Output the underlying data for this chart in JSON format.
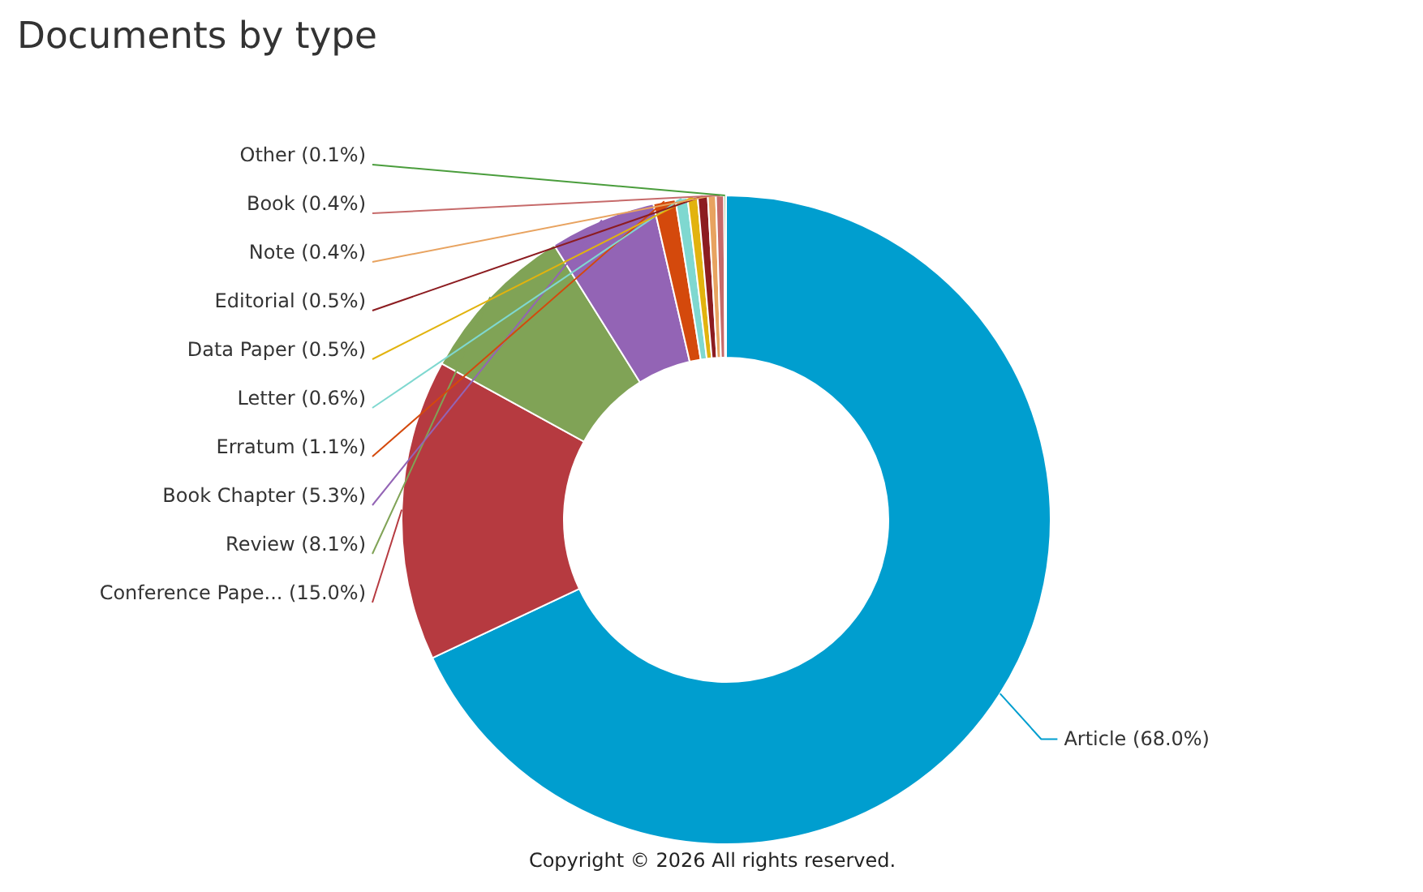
{
  "chart_data": {
    "type": "donut",
    "title": "Documents by type",
    "categories": [
      "Article",
      "Conference Pape...",
      "Review",
      "Book Chapter",
      "Erratum",
      "Letter",
      "Data Paper",
      "Editorial",
      "Note",
      "Book",
      "Other"
    ],
    "values": [
      68.0,
      15.0,
      8.1,
      5.3,
      1.1,
      0.6,
      0.5,
      0.5,
      0.4,
      0.4,
      0.1
    ],
    "colors": [
      "#009ecf",
      "#b63a40",
      "#80a356",
      "#9364b5",
      "#d4490c",
      "#7fd8d0",
      "#e2b30e",
      "#8c1c20",
      "#e8a360",
      "#c66a6a",
      "#4a9d3c"
    ],
    "value_labels": [
      "(68.0%)",
      "(15.0%)",
      "(8.1%)",
      "(5.3%)",
      "(1.1%)",
      "(0.6%)",
      "(0.5%)",
      "(0.5%)",
      "(0.4%)",
      "(0.4%)",
      "(0.1%)"
    ],
    "annotations": [
      "Copyright © 2026 All rights reserved."
    ]
  }
}
